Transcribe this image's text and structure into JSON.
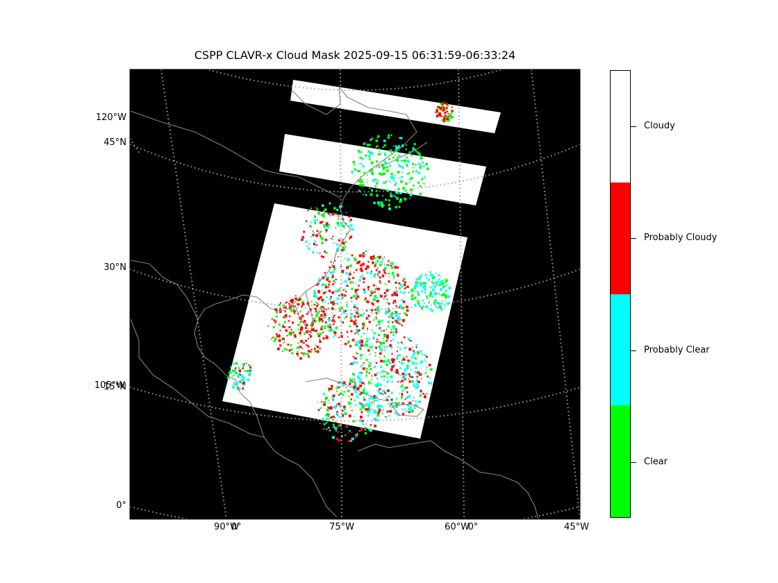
{
  "title": "CSPP CLAVR-x Cloud Mask 2025-09-15 06:31:59-06:33:24",
  "lat_labels": [
    "120°W",
    "45°N",
    "30°N",
    "105°W",
    "15°N",
    "0°"
  ],
  "lon_labels": [
    "90°W",
    "0°",
    "75°W",
    "60°W",
    "0°",
    "45°W"
  ],
  "colors": {
    "background": "#000000",
    "coastline": "#808080",
    "graticule": "#a0a0a0",
    "clear": "#00ff00",
    "probably_clear": "#00ffff",
    "probably_cloudy": "#ff0000",
    "cloudy": "#ffffff"
  },
  "colorbar": {
    "classes": [
      {
        "label": "Cloudy",
        "color": "#ffffff"
      },
      {
        "label": "Probably Cloudy",
        "color": "#ff0000"
      },
      {
        "label": "Probably Clear",
        "color": "#00ffff"
      },
      {
        "label": "Clear",
        "color": "#00ff00"
      }
    ]
  }
}
